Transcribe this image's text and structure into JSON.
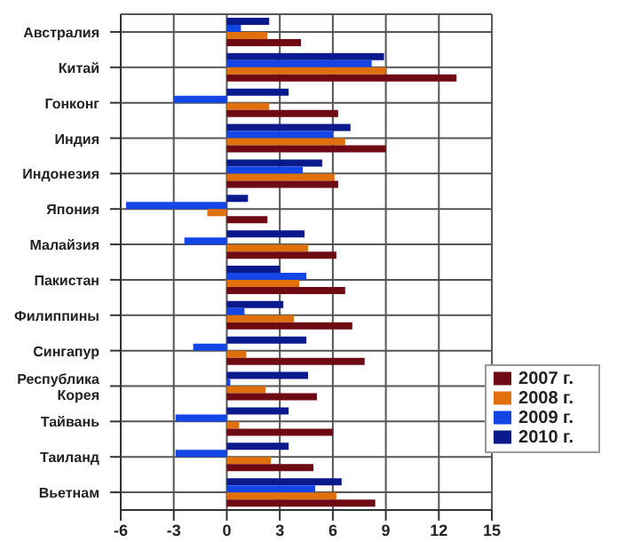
{
  "chart_data": {
    "type": "bar",
    "orientation": "horizontal",
    "categories": [
      "Австралия",
      "Китай",
      "Гонконг",
      "Индия",
      "Индонезия",
      "Япония",
      "Малайзия",
      "Пакистан",
      "Филиппины",
      "Сингапур",
      "Республика Корея",
      "Тайвань",
      "Таиланд",
      "Вьетнам"
    ],
    "series": [
      {
        "name": "2010 г.",
        "color": "#0a1a8c",
        "values": [
          2.4,
          8.9,
          3.5,
          7.0,
          5.4,
          1.2,
          4.4,
          3.0,
          3.2,
          4.5,
          4.6,
          3.5,
          3.5,
          6.5
        ]
      },
      {
        "name": "2009 г.",
        "color": "#1446e6",
        "values": [
          0.8,
          8.2,
          -3.0,
          6.0,
          4.3,
          -5.7,
          -2.4,
          4.5,
          1.0,
          -1.9,
          0.2,
          -2.9,
          -2.9,
          5.0
        ]
      },
      {
        "name": "2008 г.",
        "color": "#e0700c",
        "values": [
          2.3,
          9.0,
          2.4,
          6.7,
          6.1,
          -1.1,
          4.6,
          4.1,
          3.8,
          1.1,
          2.2,
          0.7,
          2.5,
          6.2
        ]
      },
      {
        "name": "2007 г.",
        "color": "#6e0a14",
        "values": [
          4.2,
          13.0,
          6.3,
          9.0,
          6.3,
          2.3,
          6.2,
          6.7,
          7.1,
          7.8,
          5.1,
          6.0,
          4.9,
          8.4
        ]
      }
    ],
    "xlim": [
      -6,
      15
    ],
    "xticks": [
      -6,
      -3,
      0,
      3,
      6,
      9,
      12,
      15
    ],
    "grid": true,
    "legend": "bottom right"
  }
}
